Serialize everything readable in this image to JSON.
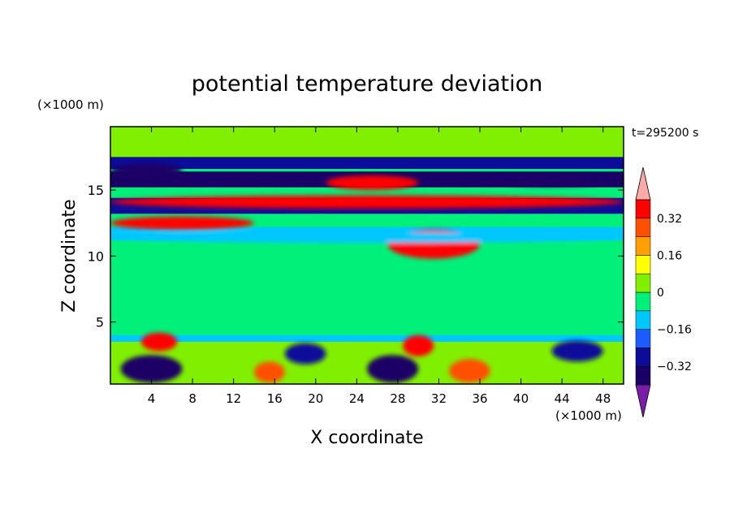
{
  "chart_data": {
    "type": "heatmap",
    "title": "potential temperature deviation",
    "xlabel": "X coordinate",
    "ylabel": "Z coordinate",
    "x_unit": "(×1000 m)",
    "y_unit": "(×1000 m)",
    "time_label": "t=295200 s",
    "xlim": [
      0,
      50
    ],
    "ylim": [
      0.3,
      19.8
    ],
    "x_ticks": [
      4,
      8,
      12,
      16,
      20,
      24,
      28,
      32,
      36,
      40,
      44,
      48
    ],
    "y_ticks": [
      5,
      10,
      15
    ],
    "colorbar": {
      "levels": [
        -0.4,
        -0.32,
        -0.24,
        -0.16,
        -0.08,
        0,
        0.08,
        0.16,
        0.24,
        0.32,
        0.4
      ],
      "tick_labels": [
        "0.32",
        "0.16",
        "0",
        "−0.16",
        "−0.32"
      ],
      "tick_values": [
        0.32,
        0.16,
        0,
        -0.16,
        -0.32
      ],
      "colors_low_to_high": [
        "#1a0066",
        "#0c0c99",
        "#1a5cff",
        "#00c8ff",
        "#00f07a",
        "#80f000",
        "#ffff00",
        "#ffa000",
        "#ff5000",
        "#ff0000"
      ],
      "under_color": "#7a1ea8",
      "over_color": "#ffaaaa"
    },
    "bands": [
      {
        "z": [
          17.5,
          19.8
        ],
        "value": 0.04
      },
      {
        "z": [
          16.6,
          17.5
        ],
        "value": -0.3
      },
      {
        "z": [
          15.2,
          16.4
        ],
        "value": -0.35
      },
      {
        "z": [
          13.2,
          14.4
        ],
        "value": -0.3
      },
      {
        "z": [
          11.2,
          12.2
        ],
        "value": -0.12
      },
      {
        "z": [
          10.8,
          11.2
        ],
        "value": -0.07
      },
      {
        "z": [
          4.0,
          10.8
        ],
        "value": -0.03
      },
      {
        "z": [
          3.5,
          4.0
        ],
        "value": -0.1
      },
      {
        "z": [
          0.3,
          3.5
        ],
        "value": 0.05
      }
    ],
    "patches": [
      {
        "x": [
          0,
          7
        ],
        "z": [
          16.0,
          17.0
        ],
        "value": -0.38
      },
      {
        "x": [
          21,
          30
        ],
        "z": [
          15.0,
          16.1
        ],
        "value": 0.35
      },
      {
        "x": [
          38,
          48
        ],
        "z": [
          15.3,
          16.0
        ],
        "value": -0.35
      },
      {
        "x": [
          0,
          50
        ],
        "z": [
          13.6,
          14.6
        ],
        "value": 0.35
      },
      {
        "x": [
          0,
          14
        ],
        "z": [
          12.0,
          13.0
        ],
        "value": 0.35
      },
      {
        "x": [
          27,
          36
        ],
        "z": [
          9.8,
          12.0
        ],
        "value": 0.35
      },
      {
        "x": [
          0,
          50
        ],
        "z": [
          11.0,
          11.8
        ],
        "value": -0.16
      },
      {
        "x": [
          3.0,
          6.5
        ],
        "z": [
          2.8,
          4.2
        ],
        "value": 0.35
      },
      {
        "x": [
          28.5,
          31.5
        ],
        "z": [
          2.4,
          4.0
        ],
        "value": 0.35
      },
      {
        "x": [
          1,
          7
        ],
        "z": [
          0.4,
          2.5
        ],
        "value": -0.38
      },
      {
        "x": [
          14,
          17
        ],
        "z": [
          0.4,
          2.0
        ],
        "value": 0.3
      },
      {
        "x": [
          17,
          21
        ],
        "z": [
          1.8,
          3.4
        ],
        "value": -0.3
      },
      {
        "x": [
          25,
          30
        ],
        "z": [
          0.4,
          2.5
        ],
        "value": -0.35
      },
      {
        "x": [
          33,
          37
        ],
        "z": [
          0.4,
          2.2
        ],
        "value": 0.3
      },
      {
        "x": [
          43,
          48
        ],
        "z": [
          2.0,
          3.6
        ],
        "value": -0.3
      }
    ]
  }
}
